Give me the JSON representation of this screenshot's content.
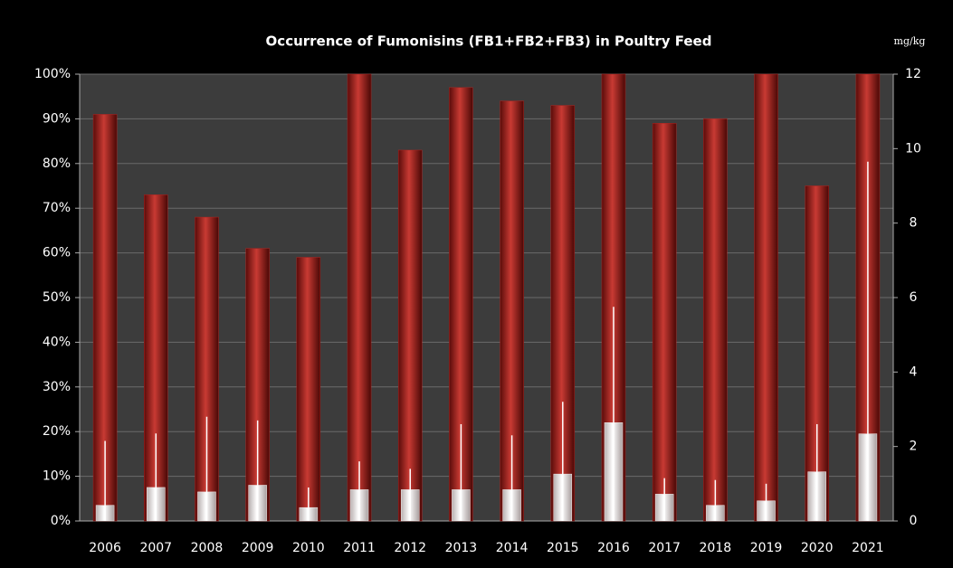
{
  "chart_data": {
    "type": "bar",
    "title": "Occurrence of Fumonisins  (FB1+FB2+FB3) in Poultry Feed",
    "y2_label": "mg/kg",
    "categories": [
      "2006",
      "2007",
      "2008",
      "2009",
      "2010",
      "2011",
      "2012",
      "2013",
      "2014",
      "2015",
      "2016",
      "2017",
      "2018",
      "2019",
      "2020",
      "2021"
    ],
    "series": [
      {
        "type": "bar",
        "color": "#b0231f",
        "axis": "y",
        "values": [
          91,
          73,
          68,
          61,
          59,
          100,
          83,
          97,
          94,
          93,
          100,
          89,
          90,
          100,
          75,
          100
        ]
      },
      {
        "type": "bar",
        "color": "#f2eeee",
        "axis": "y2",
        "values": [
          0.42,
          0.9,
          0.78,
          0.96,
          0.36,
          0.84,
          0.84,
          0.84,
          0.84,
          1.26,
          2.64,
          0.72,
          0.42,
          0.54,
          1.32,
          2.34
        ]
      },
      {
        "type": "whisker",
        "color": "#ffffff",
        "axis": "y2",
        "values": [
          2.15,
          2.35,
          2.8,
          2.7,
          0.9,
          1.6,
          1.4,
          2.6,
          2.3,
          3.2,
          5.75,
          1.15,
          1.1,
          1.0,
          2.6,
          9.65
        ]
      }
    ],
    "ylim": [
      0,
      100
    ],
    "yticks": [
      {
        "value": 0,
        "label": "0%"
      },
      {
        "value": 10,
        "label": "10%"
      },
      {
        "value": 20,
        "label": "20%"
      },
      {
        "value": 30,
        "label": "30%"
      },
      {
        "value": 40,
        "label": "40%"
      },
      {
        "value": 50,
        "label": "50%"
      },
      {
        "value": 60,
        "label": "60%"
      },
      {
        "value": 70,
        "label": "70%"
      },
      {
        "value": 80,
        "label": "80%"
      },
      {
        "value": 90,
        "label": "90%"
      },
      {
        "value": 100,
        "label": "100%"
      }
    ],
    "y2lim": [
      0,
      12
    ],
    "y2ticks": [
      0,
      2,
      4,
      6,
      8,
      10,
      12
    ],
    "grid": true
  }
}
